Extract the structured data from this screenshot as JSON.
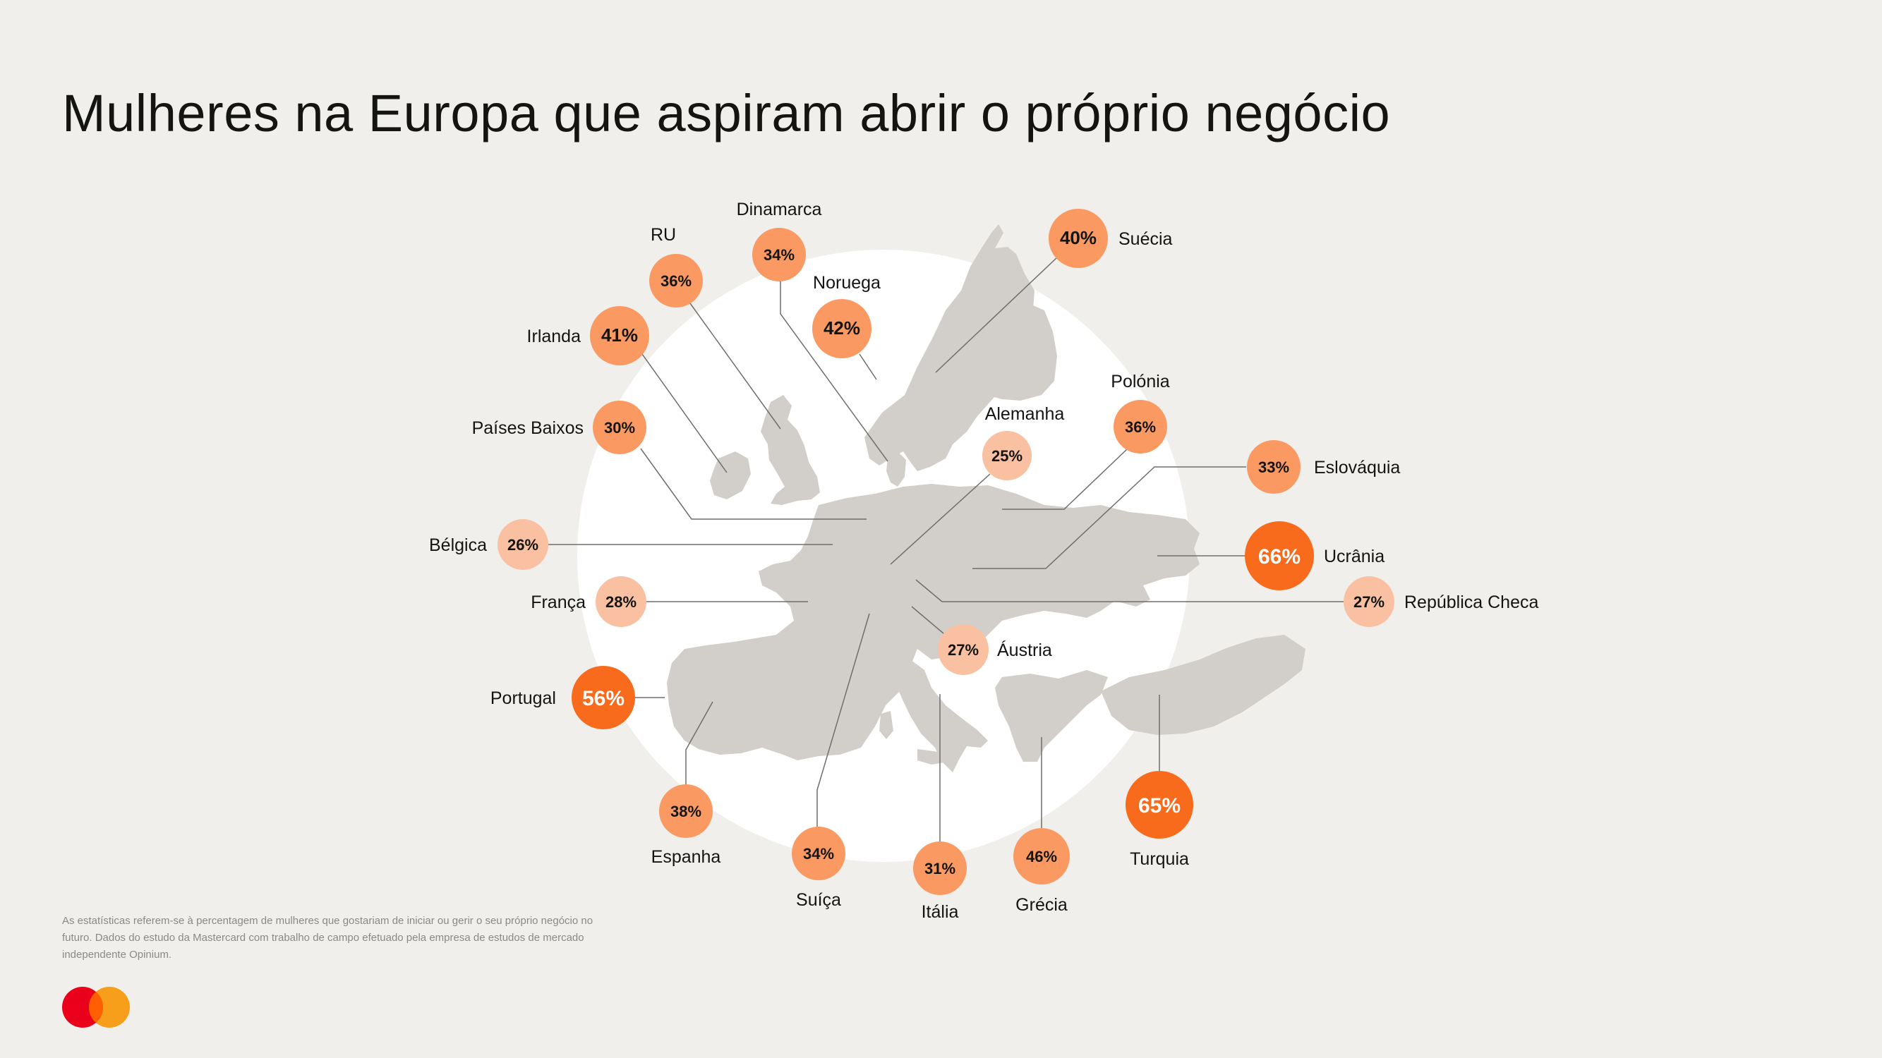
{
  "title": "Mulheres na Europa que aspiram abrir o próprio negócio",
  "footnote": "As estatísticas referem-se à percentagem de mulheres que gostariam de iniciar ou gerir o seu próprio negócio no futuro. Dados do estudo da Mastercard com trabalho de campo efetuado pela empresa de estudos de mercado independente Opinium.",
  "logo": "mastercard-logo",
  "colors": {
    "background": "#f0efec",
    "circle": "#ffffff",
    "land": "#d2cfca",
    "low": "#f9c0a2",
    "mid": "#fa9a62",
    "high": "#f96b1c",
    "leader": "#6f6e6b"
  },
  "countries": [
    {
      "name": "RU",
      "value": "36%"
    },
    {
      "name": "Dinamarca",
      "value": "34%"
    },
    {
      "name": "Noruega",
      "value": "42%"
    },
    {
      "name": "Suécia",
      "value": "40%"
    },
    {
      "name": "Irlanda",
      "value": "41%"
    },
    {
      "name": "Polónia",
      "value": "36%"
    },
    {
      "name": "Alemanha",
      "value": "25%"
    },
    {
      "name": "Países Baixos",
      "value": "30%"
    },
    {
      "name": "Eslováquia",
      "value": "33%"
    },
    {
      "name": "Bélgica",
      "value": "26%"
    },
    {
      "name": "Ucrânia",
      "value": "66%"
    },
    {
      "name": "França",
      "value": "28%"
    },
    {
      "name": "República Checa",
      "value": "27%"
    },
    {
      "name": "Áustria",
      "value": "27%"
    },
    {
      "name": "Portugal",
      "value": "56%"
    },
    {
      "name": "Espanha",
      "value": "38%"
    },
    {
      "name": "Suíça",
      "value": "34%"
    },
    {
      "name": "Itália",
      "value": "31%"
    },
    {
      "name": "Grécia",
      "value": "46%"
    },
    {
      "name": "Turquia",
      "value": "65%"
    }
  ]
}
